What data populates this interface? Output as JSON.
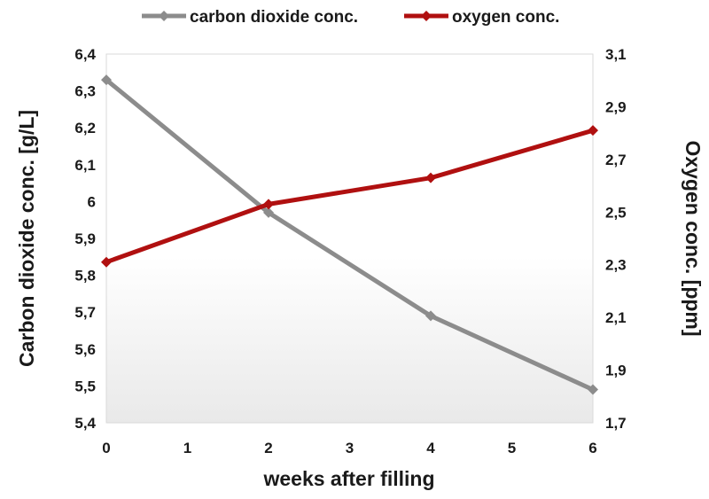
{
  "chart_data": {
    "type": "line",
    "x": [
      0,
      2,
      4,
      6
    ],
    "xlabel": "weeks after filling",
    "xlim": [
      0,
      6
    ],
    "x_ticks": [
      "0",
      "1",
      "2",
      "3",
      "4",
      "5",
      "6"
    ],
    "y_left": {
      "label": "Carbon dioxide conc. [g/L]",
      "lim": [
        5.4,
        6.4
      ],
      "ticks": [
        "5,4",
        "5,5",
        "5,6",
        "5,7",
        "5,8",
        "5,9",
        "6",
        "6,1",
        "6,2",
        "6,3",
        "6,4"
      ]
    },
    "y_right": {
      "label": "Oxygen conc. [ppm]",
      "lim": [
        1.7,
        3.1
      ],
      "ticks": [
        "1,7",
        "1,9",
        "2,1",
        "2,3",
        "2,5",
        "2,7",
        "2,9",
        "3,1"
      ]
    },
    "series": [
      {
        "name": "carbon dioxide conc.",
        "axis": "left",
        "color": "#8c8c8c",
        "values": [
          6.33,
          5.97,
          5.69,
          5.49
        ]
      },
      {
        "name": "oxygen conc.",
        "axis": "right",
        "color": "#b01010",
        "values": [
          2.31,
          2.53,
          2.63,
          2.81
        ]
      }
    ],
    "legend_position": "top",
    "grid": false,
    "marker": "diamond"
  }
}
